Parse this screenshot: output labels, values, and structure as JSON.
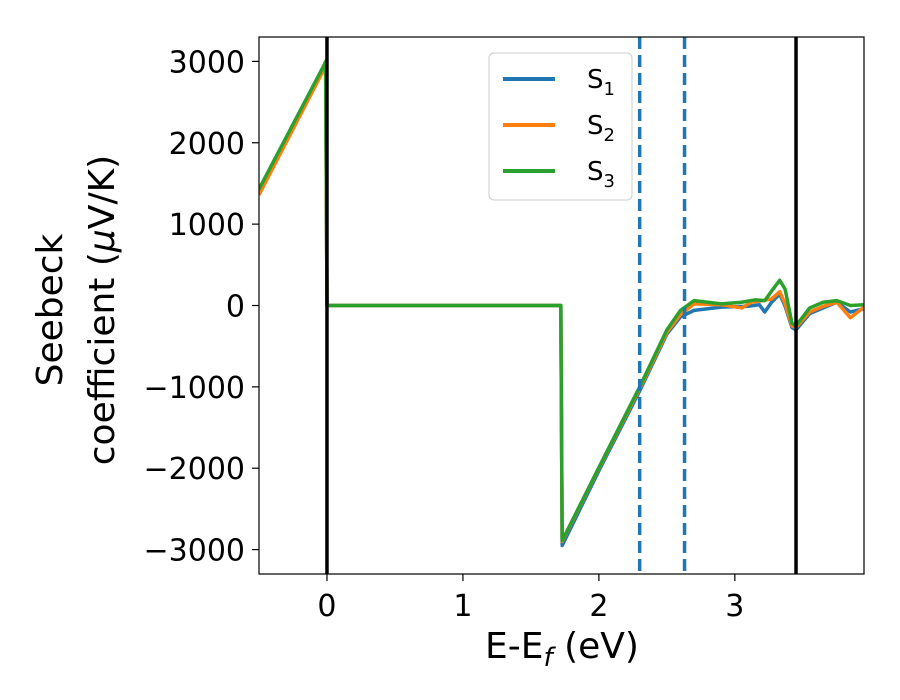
{
  "chart_data": {
    "type": "line",
    "xlabel": "E-E",
    "xlabel_sub": "f",
    "xlabel_unit": " (eV)",
    "ylabel_line1": "Seebeck",
    "ylabel_line2_prefix": "coefficient  (",
    "ylabel_mu": "μ",
    "ylabel_line2_suffix": "V/K)",
    "xlim": [
      -0.5,
      3.95
    ],
    "ylim": [
      -3300,
      3300
    ],
    "xticks": [
      0,
      1,
      2,
      3
    ],
    "yticks": [
      3000,
      2000,
      1000,
      0,
      -1000,
      -2000,
      -3000
    ],
    "ytick_labels": [
      "3000",
      "2000",
      "1000",
      "0",
      "−1000",
      "−2000",
      "−3000"
    ],
    "xtick_labels": [
      "0",
      "1",
      "2",
      "3"
    ],
    "grid": false,
    "legend_position": "top-center",
    "vertical_lines": [
      {
        "x": 0.0,
        "style": "solid",
        "color": "#000000"
      },
      {
        "x": 3.45,
        "style": "solid",
        "color": "#000000"
      },
      {
        "x": 2.3,
        "style": "dashed",
        "color": "#1f77b4"
      },
      {
        "x": 2.63,
        "style": "dashed",
        "color": "#1f77b4"
      }
    ],
    "series": [
      {
        "name": "S",
        "sub": "1",
        "color": "#1f77b4",
        "x": [
          -0.5,
          -0.02,
          -0.01,
          0.0,
          1.72,
          1.73,
          2.0,
          2.3,
          2.5,
          2.6,
          2.7,
          2.9,
          3.1,
          3.18,
          3.22,
          3.27,
          3.33,
          3.37,
          3.42,
          3.45,
          3.55,
          3.65,
          3.75,
          3.85,
          3.95
        ],
        "y": [
          1380,
          2920,
          2950,
          0,
          0,
          -2950,
          -2030,
          -1050,
          -350,
          -140,
          -60,
          -20,
          -10,
          10,
          -80,
          40,
          140,
          -10,
          -270,
          -300,
          -100,
          -30,
          40,
          -80,
          -40
        ]
      },
      {
        "name": "S",
        "sub": "2",
        "color": "#ff7f0e",
        "x": [
          -0.5,
          -0.02,
          -0.01,
          0.0,
          1.72,
          1.73,
          2.0,
          2.3,
          2.5,
          2.6,
          2.7,
          2.9,
          3.05,
          3.12,
          3.2,
          3.27,
          3.33,
          3.37,
          3.42,
          3.45,
          3.55,
          3.65,
          3.75,
          3.85,
          3.95
        ],
        "y": [
          1360,
          2910,
          2940,
          0,
          0,
          -2900,
          -2000,
          -1020,
          -330,
          -110,
          20,
          10,
          -30,
          40,
          60,
          80,
          170,
          20,
          -250,
          -270,
          -80,
          -10,
          40,
          -150,
          -20
        ]
      },
      {
        "name": "S",
        "sub": "3",
        "color": "#2ca02c",
        "x": [
          -0.5,
          -0.02,
          -0.01,
          0.0,
          1.72,
          1.73,
          2.0,
          2.3,
          2.5,
          2.6,
          2.7,
          2.9,
          3.05,
          3.15,
          3.22,
          3.28,
          3.33,
          3.37,
          3.42,
          3.45,
          3.55,
          3.65,
          3.75,
          3.85,
          3.95
        ],
        "y": [
          1430,
          2960,
          3000,
          0,
          0,
          -2890,
          -1990,
          -1000,
          -300,
          -60,
          60,
          20,
          40,
          70,
          60,
          200,
          310,
          200,
          -220,
          -250,
          -30,
          40,
          60,
          0,
          10
        ]
      }
    ]
  }
}
